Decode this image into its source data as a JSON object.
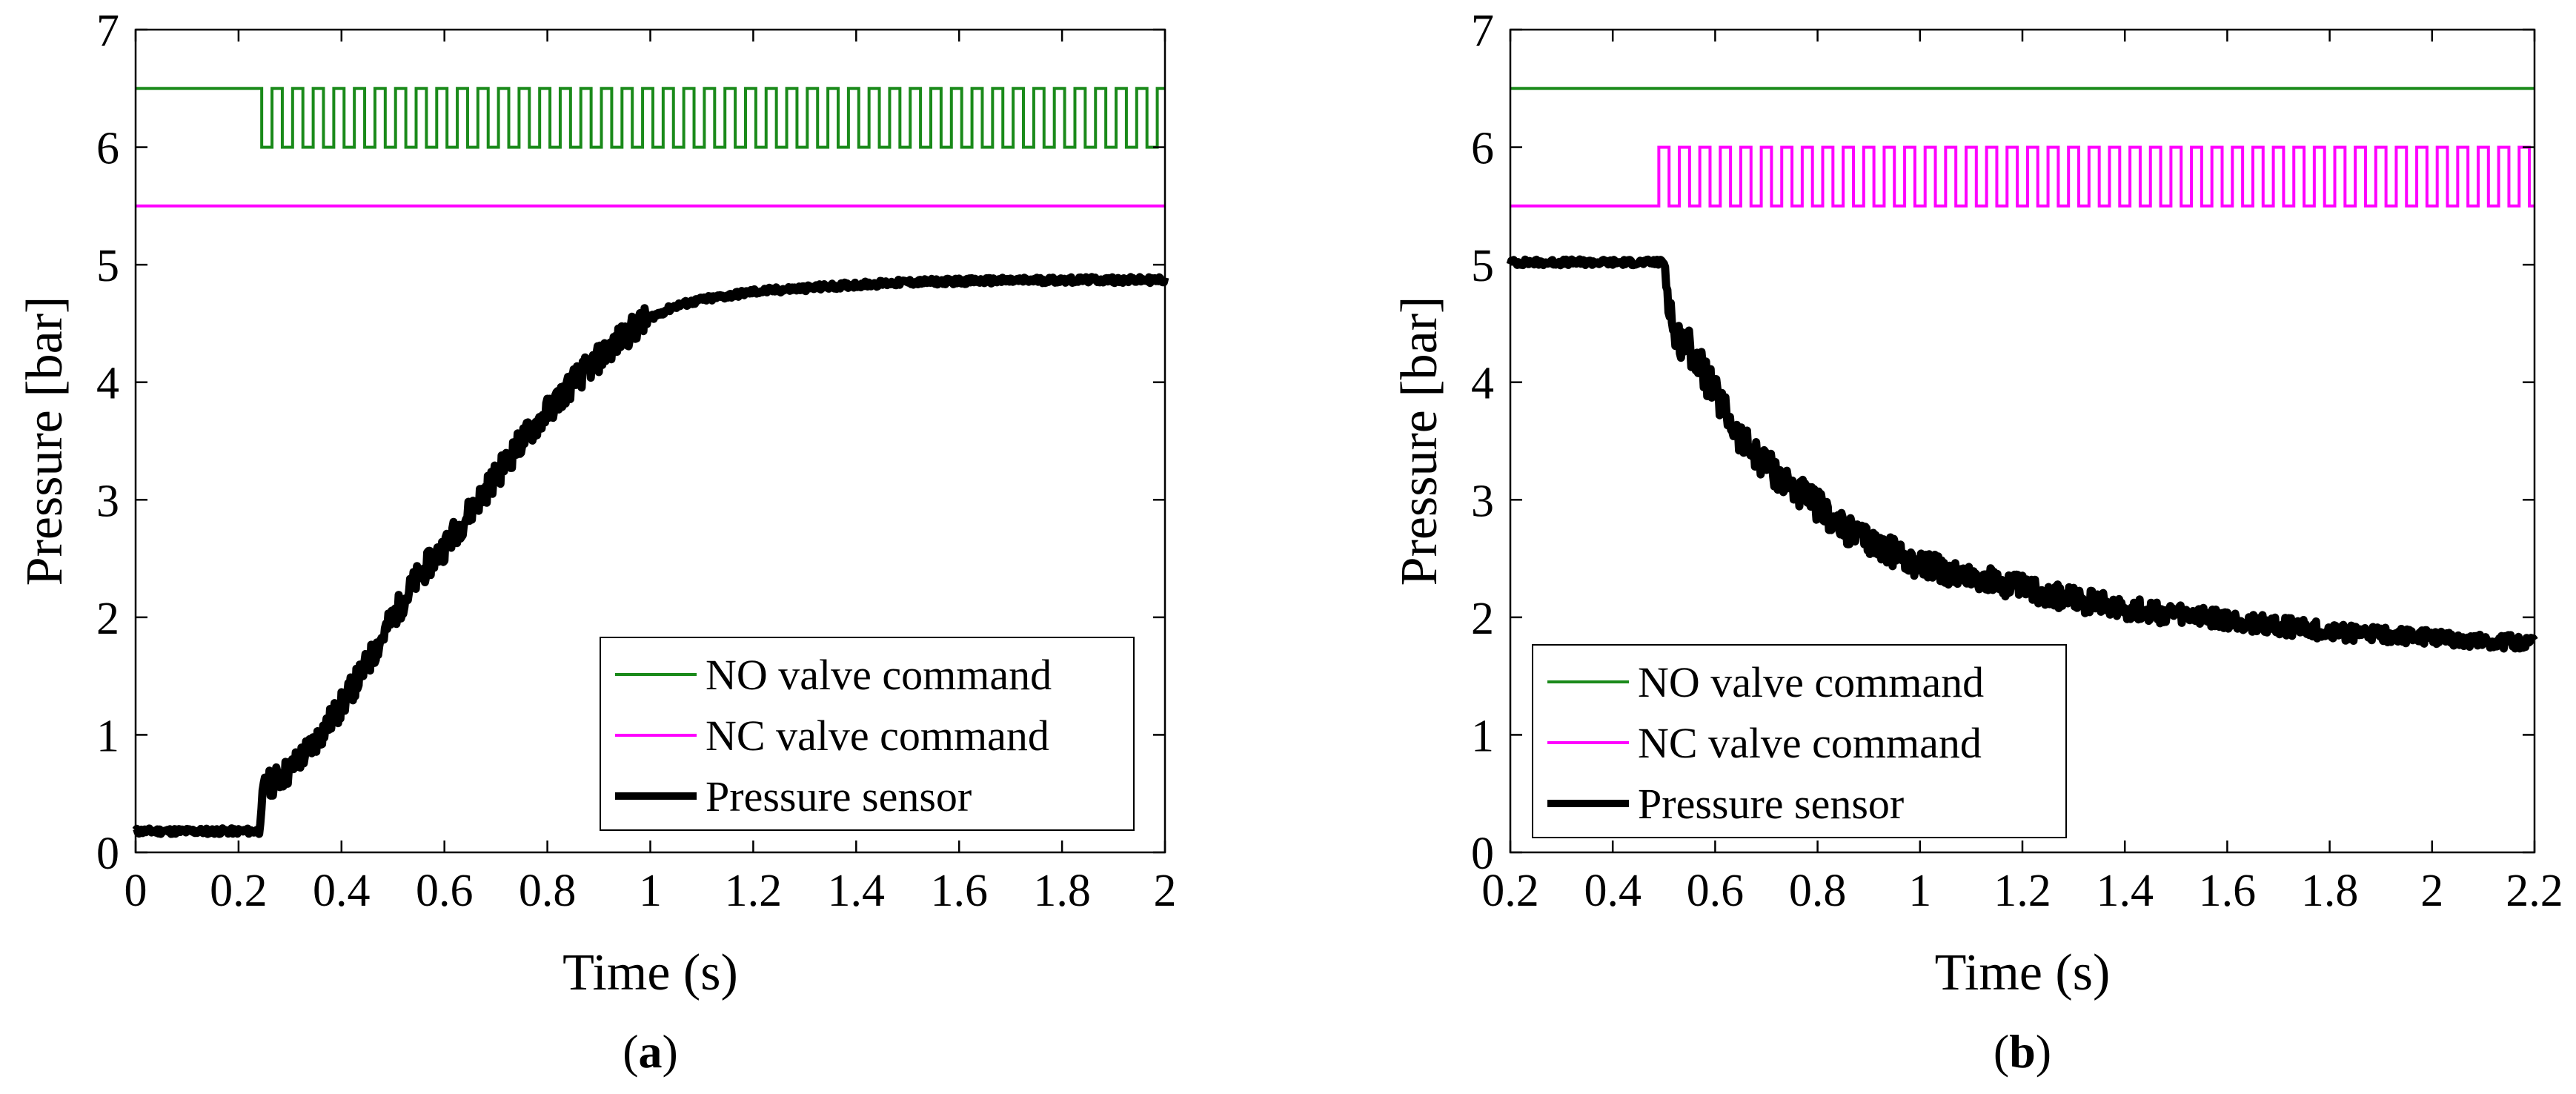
{
  "chart_data": [
    {
      "id": "a",
      "type": "line",
      "panel_label_letter": "a",
      "xlabel": "Time (s)",
      "ylabel": "Pressure [bar]",
      "xlim": [
        0,
        2
      ],
      "ylim": [
        0,
        7
      ],
      "xticks": [
        0,
        0.2,
        0.4,
        0.6,
        0.8,
        1,
        1.2,
        1.4,
        1.6,
        1.8,
        2
      ],
      "xtick_labels": [
        "0",
        "0.2",
        "0.4",
        "0.6",
        "0.8",
        "1",
        "1.2",
        "1.4",
        "1.6",
        "1.8",
        "2"
      ],
      "yticks": [
        0,
        1,
        2,
        3,
        4,
        5,
        6,
        7
      ],
      "ytick_labels": [
        "0",
        "1",
        "2",
        "3",
        "4",
        "5",
        "6",
        "7"
      ],
      "legend_position": "bottom-right",
      "series": [
        {
          "name": "NO valve command",
          "color": "#1a8a1a",
          "kind": "pulse",
          "base": 6.5,
          "low": 6.0,
          "pulse_start": 0.245,
          "pulse_end": 2.0,
          "period": 0.04,
          "duty": 0.5,
          "points": [
            [
              0,
              6.5
            ],
            [
              0.245,
              6.5
            ],
            [
              2.0,
              6.5
            ]
          ]
        },
        {
          "name": "NC valve command",
          "color": "#ff00ff",
          "kind": "flat",
          "points": [
            [
              0,
              5.5
            ],
            [
              2.0,
              5.5
            ]
          ]
        },
        {
          "name": "Pressure sensor",
          "color": "#000000",
          "kind": "sensor",
          "points": [
            [
              0,
              0.18
            ],
            [
              0.24,
              0.18
            ],
            [
              0.25,
              0.55
            ],
            [
              0.3,
              0.7
            ],
            [
              0.35,
              0.95
            ],
            [
              0.4,
              1.25
            ],
            [
              0.45,
              1.6
            ],
            [
              0.5,
              2.0
            ],
            [
              0.55,
              2.35
            ],
            [
              0.6,
              2.6
            ],
            [
              0.65,
              2.9
            ],
            [
              0.7,
              3.2
            ],
            [
              0.75,
              3.5
            ],
            [
              0.8,
              3.75
            ],
            [
              0.85,
              4.0
            ],
            [
              0.9,
              4.2
            ],
            [
              0.95,
              4.4
            ],
            [
              1.0,
              4.55
            ],
            [
              1.05,
              4.65
            ],
            [
              1.1,
              4.7
            ],
            [
              1.2,
              4.77
            ],
            [
              1.3,
              4.8
            ],
            [
              1.4,
              4.83
            ],
            [
              1.5,
              4.85
            ],
            [
              1.6,
              4.86
            ],
            [
              1.8,
              4.87
            ],
            [
              2.0,
              4.87
            ]
          ]
        }
      ]
    },
    {
      "id": "b",
      "type": "line",
      "panel_label_letter": "b",
      "xlabel": "Time (s)",
      "ylabel": "Pressure [bar]",
      "xlim": [
        0.2,
        2.2
      ],
      "ylim": [
        0,
        7
      ],
      "xticks": [
        0.2,
        0.4,
        0.6,
        0.8,
        1,
        1.2,
        1.4,
        1.6,
        1.8,
        2,
        2.2
      ],
      "xtick_labels": [
        "0.2",
        "0.4",
        "0.6",
        "0.8",
        "1",
        "1.2",
        "1.4",
        "1.6",
        "1.8",
        "2",
        "2.2"
      ],
      "yticks": [
        0,
        1,
        2,
        3,
        4,
        5,
        6,
        7
      ],
      "ytick_labels": [
        "0",
        "1",
        "2",
        "3",
        "4",
        "5",
        "6",
        "7"
      ],
      "legend_position": "bottom-left",
      "series": [
        {
          "name": "NO valve command",
          "color": "#1a8a1a",
          "kind": "flat",
          "points": [
            [
              0.2,
              6.5
            ],
            [
              2.2,
              6.5
            ]
          ]
        },
        {
          "name": "NC valve command",
          "color": "#ff00ff",
          "kind": "pulse",
          "base": 5.5,
          "high": 6.0,
          "pulse_start": 0.49,
          "pulse_end": 2.2,
          "period": 0.04,
          "duty": 0.5,
          "points": [
            [
              0.2,
              5.5
            ],
            [
              0.49,
              5.5
            ],
            [
              2.2,
              5.5
            ]
          ]
        },
        {
          "name": "Pressure sensor",
          "color": "#000000",
          "kind": "sensor",
          "points": [
            [
              0.2,
              5.02
            ],
            [
              0.5,
              5.02
            ],
            [
              0.52,
              4.4
            ],
            [
              0.55,
              4.3
            ],
            [
              0.6,
              3.9
            ],
            [
              0.65,
              3.5
            ],
            [
              0.7,
              3.3
            ],
            [
              0.75,
              3.1
            ],
            [
              0.8,
              2.95
            ],
            [
              0.85,
              2.75
            ],
            [
              0.9,
              2.65
            ],
            [
              0.95,
              2.55
            ],
            [
              1.0,
              2.45
            ],
            [
              1.1,
              2.35
            ],
            [
              1.2,
              2.25
            ],
            [
              1.3,
              2.15
            ],
            [
              1.4,
              2.08
            ],
            [
              1.5,
              2.02
            ],
            [
              1.6,
              1.97
            ],
            [
              1.7,
              1.93
            ],
            [
              1.8,
              1.88
            ],
            [
              1.9,
              1.85
            ],
            [
              2.0,
              1.83
            ],
            [
              2.1,
              1.8
            ],
            [
              2.2,
              1.78
            ]
          ]
        }
      ]
    }
  ]
}
